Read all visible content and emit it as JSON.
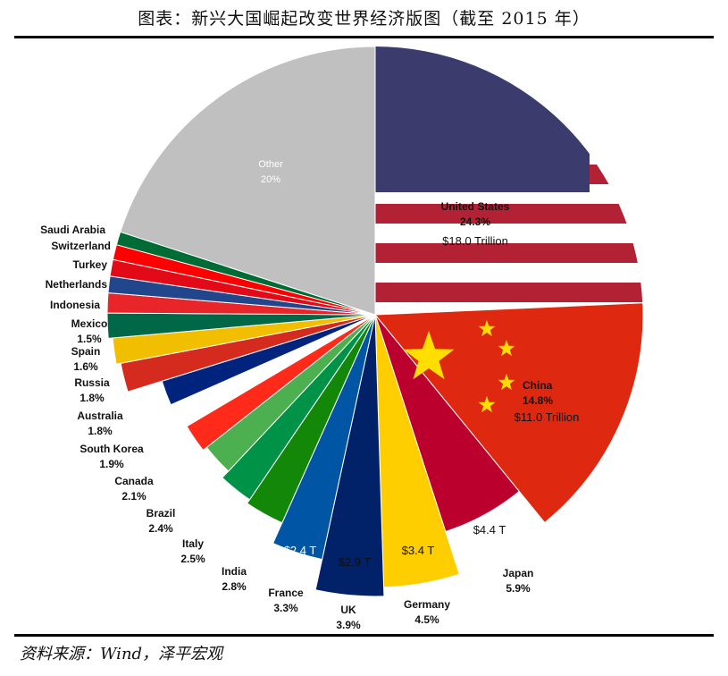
{
  "title": "图表：新兴大国崛起改变世界经济版图（截至 2015 年）",
  "source": "资料来源：Wind，泽平宏观",
  "chart_data": {
    "type": "pie",
    "slices": [
      {
        "name": "United States",
        "pct_label": "24.3%",
        "value": 24.3,
        "extra": "$18.0 Trillion",
        "color": "#b22234"
      },
      {
        "name": "China",
        "pct_label": "14.8%",
        "value": 14.8,
        "extra": "$11.0 Trillion",
        "color": "#de2910"
      },
      {
        "name": "Japan",
        "pct_label": "5.9%",
        "value": 5.9,
        "extra": "$4.4 T",
        "color": "#bc002d"
      },
      {
        "name": "Germany",
        "pct_label": "4.5%",
        "value": 4.5,
        "extra": "$3.4 T",
        "color": "#ffce00"
      },
      {
        "name": "UK",
        "pct_label": "3.9%",
        "value": 3.9,
        "extra": "$2.9 T",
        "color": "#012169"
      },
      {
        "name": "France",
        "pct_label": "3.3%",
        "value": 3.3,
        "extra": "$2.4 T",
        "color": "#0055a4"
      },
      {
        "name": "India",
        "pct_label": "2.8%",
        "value": 2.8,
        "extra": "",
        "color": "#138808"
      },
      {
        "name": "Italy",
        "pct_label": "2.5%",
        "value": 2.5,
        "extra": "",
        "color": "#009246"
      },
      {
        "name": "Brazil",
        "pct_label": "2.4%",
        "value": 2.4,
        "extra": "",
        "color": "#4caf50"
      },
      {
        "name": "Canada",
        "pct_label": "2.1%",
        "value": 2.1,
        "extra": "",
        "color": "#ff2a1a"
      },
      {
        "name": "South Korea",
        "pct_label": "1.9%",
        "value": 1.9,
        "extra": "",
        "color": "#ffffff"
      },
      {
        "name": "Australia",
        "pct_label": "1.8%",
        "value": 1.8,
        "extra": "",
        "color": "#00247d"
      },
      {
        "name": "Russia",
        "pct_label": "1.8%",
        "value": 1.8,
        "extra": "",
        "color": "#d52b1e"
      },
      {
        "name": "Spain",
        "pct_label": "1.6%",
        "value": 1.6,
        "extra": "",
        "color": "#f1bf00"
      },
      {
        "name": "Mexico",
        "pct_label": "1.5%",
        "value": 1.5,
        "extra": "",
        "color": "#006847"
      },
      {
        "name": "Indonesia",
        "pct_label": "",
        "value": 1.2,
        "extra": "",
        "color": "#e8262a"
      },
      {
        "name": "Netherlands",
        "pct_label": "",
        "value": 1.0,
        "extra": "",
        "color": "#21468b"
      },
      {
        "name": "Turkey",
        "pct_label": "",
        "value": 1.0,
        "extra": "",
        "color": "#e30a17"
      },
      {
        "name": "Switzerland",
        "pct_label": "",
        "value": 0.9,
        "extra": "",
        "color": "#ff0000"
      },
      {
        "name": "Saudi Arabia",
        "pct_label": "",
        "value": 0.8,
        "extra": "",
        "color": "#006c35"
      },
      {
        "name": "Other",
        "pct_label": "20%",
        "value": 20.0,
        "extra": "",
        "color": "#c0c0c0"
      }
    ]
  }
}
